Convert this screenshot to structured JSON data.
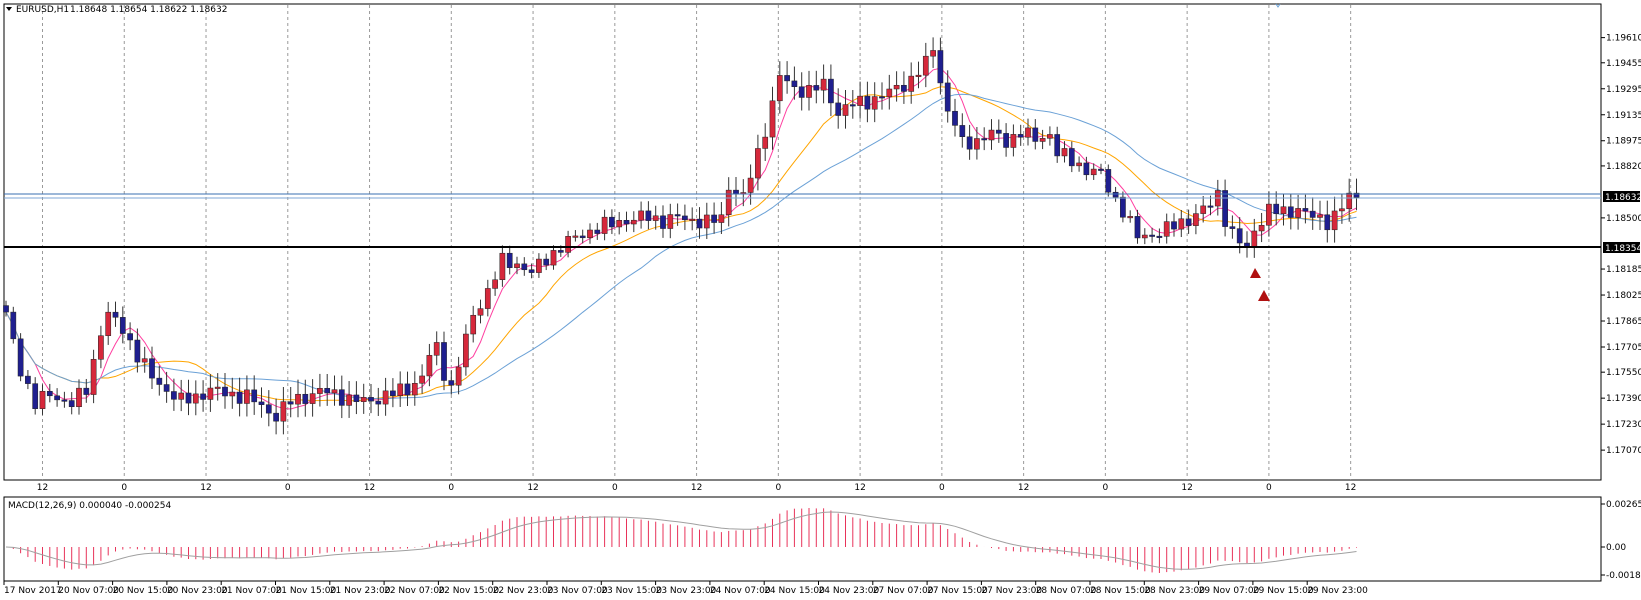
{
  "header": {
    "symbol_label": "EURUSD,H1",
    "ohlc": "1.18648 1.18654 1.18622 1.18632"
  },
  "macd": {
    "label": "MACD(12,26,9) 0.000040 -0.000254",
    "ticks": [
      "0.002658",
      "0.00",
      "-0.001857"
    ]
  },
  "colors": {
    "bull": "#d6283b",
    "bear": "#1f1f8f",
    "ma_fast": "#ff3fa0",
    "ma_mid": "#ffa500",
    "ma_slow": "#6ba1d6",
    "macd_hist": "#e8335a",
    "macd_signal": "#a0a0a0",
    "price_line": "#3a6fb0",
    "support_line": "#000000",
    "marker": "#b01010"
  },
  "chart_data": {
    "type": "candlestick",
    "symbol": "EURUSD",
    "timeframe": "H1",
    "y_ticks": [
      "1.19610",
      "1.19455",
      "1.19295",
      "1.19135",
      "1.18975",
      "1.18820",
      "1.18500",
      "1.18185",
      "1.18025",
      "1.17865",
      "1.17705",
      "1.17550",
      "1.17390",
      "1.17230",
      "1.17070"
    ],
    "ylim": [
      1.1704,
      1.197
    ],
    "hour_labels": [
      "12",
      "0",
      "12",
      "0",
      "12",
      "0",
      "12",
      "0",
      "12",
      "0",
      "12",
      "0",
      "12",
      "0",
      "12",
      "0",
      "12"
    ],
    "date_labels": [
      "17 Nov 2017",
      "20 Nov 07:00",
      "20 Nov 15:00",
      "20 Nov 23:00",
      "21 Nov 07:00",
      "21 Nov 15:00",
      "21 Nov 23:00",
      "22 Nov 07:00",
      "22 Nov 15:00",
      "22 Nov 23:00",
      "23 Nov 07:00",
      "23 Nov 15:00",
      "23 Nov 23:00",
      "24 Nov 07:00",
      "24 Nov 15:00",
      "24 Nov 23:00",
      "27 Nov 07:00",
      "27 Nov 15:00",
      "27 Nov 23:00",
      "28 Nov 07:00",
      "28 Nov 15:00",
      "28 Nov 23:00",
      "29 Nov 07:00",
      "29 Nov 15:00",
      "29 Nov 23:00"
    ],
    "current_price": "1.18632",
    "support_level": "1.18354",
    "anchors": [
      [
        0,
        1.179
      ],
      [
        2,
        1.1757
      ],
      [
        4,
        1.1735
      ],
      [
        6,
        1.1742
      ],
      [
        9,
        1.1735
      ],
      [
        11,
        1.1745
      ],
      [
        12,
        1.1762
      ],
      [
        13,
        1.178
      ],
      [
        14,
        1.179
      ],
      [
        16,
        1.1782
      ],
      [
        18,
        1.1765
      ],
      [
        20,
        1.1752
      ],
      [
        22,
        1.1744
      ],
      [
        24,
        1.1737
      ],
      [
        26,
        1.174
      ],
      [
        28,
        1.1744
      ],
      [
        30,
        1.1742
      ],
      [
        33,
        1.174
      ],
      [
        35,
        1.1734
      ],
      [
        37,
        1.1728
      ],
      [
        39,
        1.1737
      ],
      [
        41,
        1.174
      ],
      [
        43,
        1.1743
      ],
      [
        45,
        1.1742
      ],
      [
        47,
        1.1738
      ],
      [
        49,
        1.1737
      ],
      [
        51,
        1.1739
      ],
      [
        53,
        1.1742
      ],
      [
        55,
        1.1745
      ],
      [
        57,
        1.1752
      ],
      [
        58,
        1.1765
      ],
      [
        59,
        1.177
      ],
      [
        60,
        1.1755
      ],
      [
        61,
        1.1745
      ],
      [
        62,
        1.176
      ],
      [
        64,
        1.179
      ],
      [
        66,
        1.1805
      ],
      [
        68,
        1.1823
      ],
      [
        70,
        1.1822
      ],
      [
        72,
        1.1816
      ],
      [
        74,
        1.1825
      ],
      [
        76,
        1.1832
      ],
      [
        78,
        1.1838
      ],
      [
        80,
        1.1842
      ],
      [
        82,
        1.1845
      ],
      [
        84,
        1.1848
      ],
      [
        86,
        1.1849
      ],
      [
        88,
        1.1851
      ],
      [
        90,
        1.1848
      ],
      [
        92,
        1.185
      ],
      [
        94,
        1.1849
      ],
      [
        96,
        1.1847
      ],
      [
        98,
        1.185
      ],
      [
        99,
        1.187
      ],
      [
        101,
        1.1862
      ],
      [
        103,
        1.189
      ],
      [
        105,
        1.192
      ],
      [
        106,
        1.1937
      ],
      [
        108,
        1.193
      ],
      [
        110,
        1.1928
      ],
      [
        112,
        1.1932
      ],
      [
        114,
        1.1915
      ],
      [
        116,
        1.192
      ],
      [
        118,
        1.1922
      ],
      [
        120,
        1.1925
      ],
      [
        122,
        1.193
      ],
      [
        124,
        1.1935
      ],
      [
        126,
        1.1945
      ],
      [
        127,
        1.1955
      ],
      [
        128,
        1.1935
      ],
      [
        129,
        1.1915
      ],
      [
        130,
        1.1908
      ],
      [
        131,
        1.1895
      ],
      [
        133,
        1.1898
      ],
      [
        135,
        1.1902
      ],
      [
        137,
        1.1897
      ],
      [
        139,
        1.1903
      ],
      [
        141,
        1.1898
      ],
      [
        143,
        1.1902
      ],
      [
        144,
        1.189
      ],
      [
        146,
        1.1885
      ],
      [
        148,
        1.188
      ],
      [
        150,
        1.1877
      ],
      [
        151,
        1.1868
      ],
      [
        153,
        1.1855
      ],
      [
        155,
        1.1838
      ],
      [
        157,
        1.184
      ],
      [
        159,
        1.1843
      ],
      [
        161,
        1.1847
      ],
      [
        163,
        1.1852
      ],
      [
        165,
        1.1858
      ],
      [
        166,
        1.1865
      ],
      [
        167,
        1.185
      ],
      [
        168,
        1.184
      ],
      [
        169,
        1.1835
      ],
      [
        170,
        1.183
      ],
      [
        171,
        1.1843
      ],
      [
        173,
        1.1855
      ],
      [
        175,
        1.1853
      ],
      [
        177,
        1.1856
      ],
      [
        179,
        1.185
      ],
      [
        181,
        1.1848
      ],
      [
        182,
        1.1852
      ],
      [
        184,
        1.1862
      ],
      [
        185,
        1.1863
      ]
    ]
  }
}
